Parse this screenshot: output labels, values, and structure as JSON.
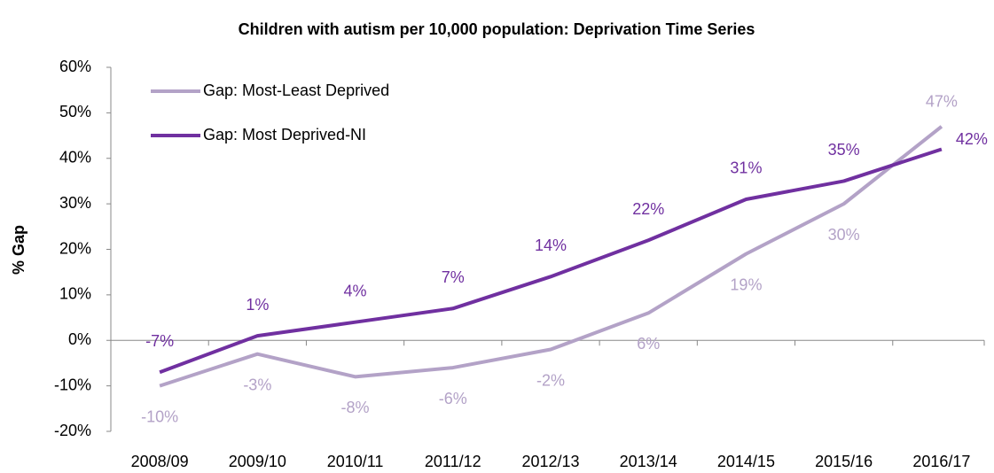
{
  "chart_data": {
    "type": "line",
    "title": "Children with autism per 10,000 population: Deprivation Time Series",
    "y_label": "% Gap",
    "categories": [
      "2008/09",
      "2009/10",
      "2010/11",
      "2011/12",
      "2012/13",
      "2013/14",
      "2014/15",
      "2015/16",
      "2016/17"
    ],
    "series": [
      {
        "name": "Gap: Most-Least Deprived",
        "color": "#b3a2c7",
        "values": [
          -10,
          -3,
          -8,
          -6,
          -2,
          6,
          19,
          30,
          47
        ],
        "value_labels": [
          "-10%",
          "-3%",
          "-8%",
          "-6%",
          "-2%",
          "6%",
          "19%",
          "30%",
          "47%"
        ]
      },
      {
        "name": "Gap: Most Deprived-NI",
        "color": "#7030a0",
        "values": [
          -7,
          1,
          4,
          7,
          14,
          22,
          31,
          35,
          42
        ],
        "value_labels": [
          "-7%",
          "1%",
          "4%",
          "7%",
          "14%",
          "22%",
          "31%",
          "35%",
          "42%"
        ]
      }
    ],
    "ylim": [
      -20,
      60
    ],
    "yticks": [
      {
        "value": -20,
        "label": "-20%"
      },
      {
        "value": -10,
        "label": "-10%"
      },
      {
        "value": 0,
        "label": "0%"
      },
      {
        "value": 10,
        "label": "10%"
      },
      {
        "value": 20,
        "label": "20%"
      },
      {
        "value": 30,
        "label": "30%"
      },
      {
        "value": 40,
        "label": "40%"
      },
      {
        "value": 50,
        "label": "50%"
      },
      {
        "value": 60,
        "label": "60%"
      }
    ],
    "grid": false,
    "legend": "top-left"
  }
}
